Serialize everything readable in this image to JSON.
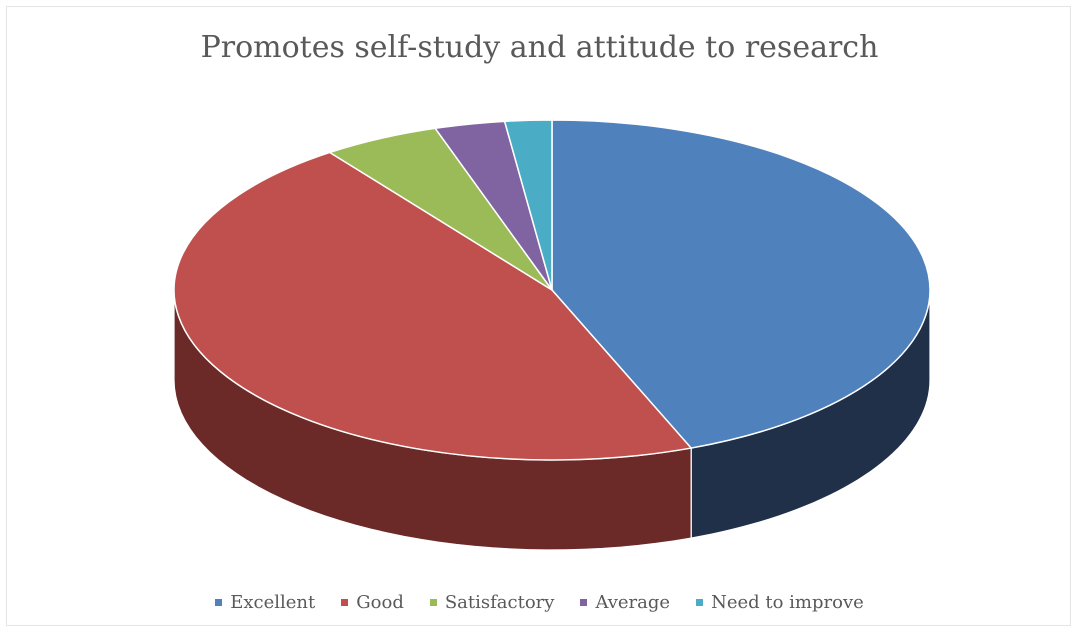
{
  "chart_data": {
    "type": "pie",
    "title": "Promotes self-study and attitude to research",
    "categories": [
      "Excellent",
      "Good",
      "Satisfactory",
      "Average",
      "Need to improve"
    ],
    "values": [
      44,
      46,
      5,
      3,
      2
    ],
    "colors": [
      "#4f81bd",
      "#c0504d",
      "#9bbb59",
      "#8064a2",
      "#4bacc6"
    ],
    "side_colors": [
      "#1f3048",
      "#6b2a28",
      "#55682f",
      "#463859",
      "#296171"
    ],
    "three_d": true,
    "legend_position": "bottom"
  }
}
